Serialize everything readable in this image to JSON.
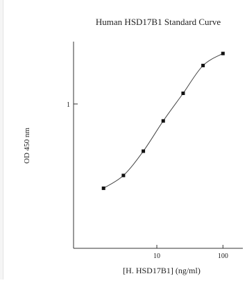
{
  "chart_data": {
    "type": "scatter",
    "title": "Human HSD17B1 Standard Curve",
    "xlabel": "[H. HSD17B1] (ng/ml)",
    "ylabel": "OD 450 nm",
    "x_scale": "log",
    "y_scale": "log",
    "xlim": [
      0.55,
      200
    ],
    "ylim": [
      0.12,
      2.5
    ],
    "x_ticks": [
      {
        "value": 10,
        "label": "10"
      },
      {
        "value": 100,
        "label": "100"
      }
    ],
    "y_ticks": [
      {
        "value": 1,
        "label": "1"
      }
    ],
    "grid": false,
    "legend": "none",
    "series": [
      {
        "marker": "square",
        "line": "smooth",
        "x": [
          1.563,
          3.125,
          6.25,
          12.5,
          25,
          50,
          100
        ],
        "y": [
          0.29,
          0.35,
          0.5,
          0.78,
          1.17,
          1.76,
          2.1
        ]
      }
    ],
    "colors": {
      "axis": "#333333",
      "line": "#444444",
      "marker": "#111111",
      "text": "#222222"
    }
  }
}
